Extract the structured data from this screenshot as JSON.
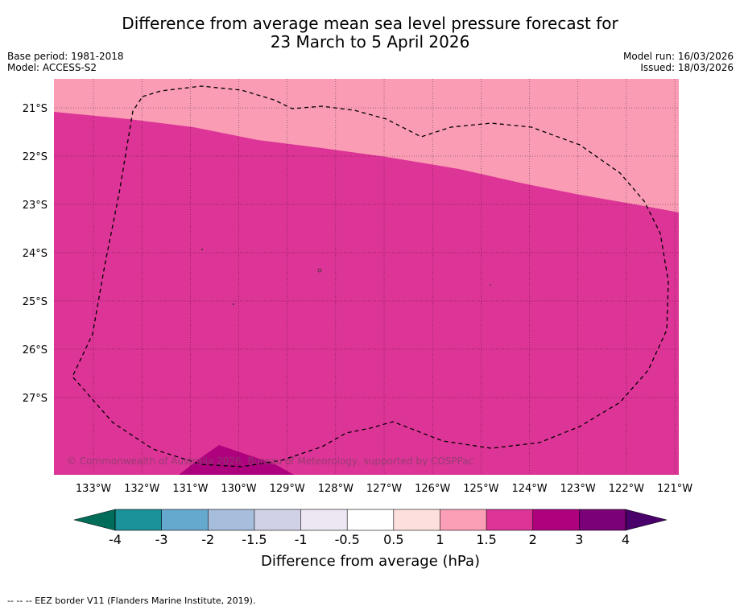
{
  "title_line1": "Difference from average mean sea level pressure forecast for",
  "title_line2": "23 March to 5 April 2026",
  "meta": {
    "base_period": "Base period: 1981-2018",
    "model": "Model: ACCESS-S2",
    "model_run": "Model run: 16/03/2026",
    "issued": "Issued: 18/03/2026"
  },
  "map": {
    "lat_labels": [
      "21°S",
      "22°S",
      "23°S",
      "24°S",
      "25°S",
      "26°S",
      "27°S"
    ],
    "lat_values": [
      -21,
      -22,
      -23,
      -24,
      -25,
      -26,
      -27
    ],
    "lon_labels": [
      "133°W",
      "132°W",
      "131°W",
      "130°W",
      "129°W",
      "128°W",
      "127°W",
      "126°W",
      "125°W",
      "124°W",
      "123°W",
      "122°W",
      "121°W"
    ],
    "lon_values": [
      -133,
      -132,
      -131,
      -130,
      -129,
      -128,
      -127,
      -126,
      -125,
      -124,
      -123,
      -122,
      -121
    ],
    "fill_colors": {
      "band_1_to_1_5": "#f99cb4",
      "band_1_5_to_2": "#dd3497",
      "band_2_to_3": "#ae017e"
    },
    "copyright": "© Commonwealth of Australia 2026, Bureau of Meteorology, supported by COSPPac"
  },
  "colorbar": {
    "label": "Difference from average (hPa)",
    "ticks": [
      "-4",
      "-3",
      "-2",
      "-1.5",
      "-1",
      "-0.5",
      "0.5",
      "1",
      "1.5",
      "2",
      "3",
      "4"
    ],
    "colors": [
      "#1b9199",
      "#66a9cf",
      "#a6bddb",
      "#d0d1e6",
      "#ece7f2",
      "#ffffff",
      "#fde0dd",
      "#fa9fb5",
      "#dd3497",
      "#ae017e",
      "#7a0177"
    ],
    "under_color": "#016c59",
    "over_color": "#49006a"
  },
  "footer": "--  --  -- EEZ border V11 (Flanders Marine Institute, 2019)."
}
